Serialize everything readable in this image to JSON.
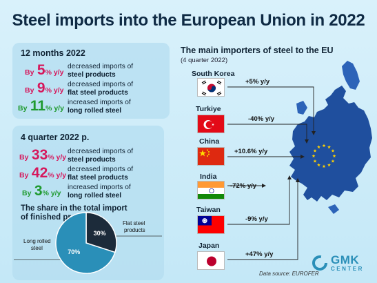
{
  "title": "Steel imports into the European Union in 2022",
  "annual": {
    "heading": "12 months 2022",
    "rows": [
      {
        "by": "By",
        "num": "5",
        "unit": "% y/y",
        "line1": "decreased imports of",
        "line2": "steel products",
        "kind": "decrease"
      },
      {
        "by": "By",
        "num": "9",
        "unit": "% y/y",
        "line1": "decreased imports of",
        "line2": "flat steel products",
        "kind": "decrease"
      },
      {
        "by": "By",
        "num": "11",
        "unit": "% y/y",
        "line1": "increased imports of",
        "line2": "long rolled steel",
        "kind": "increase"
      }
    ]
  },
  "quarter": {
    "heading": "4 quarter 2022 p.",
    "rows": [
      {
        "by": "By",
        "num": "33",
        "unit": "% y/y",
        "line1": "decreased imports of",
        "line2": "steel products",
        "kind": "decrease"
      },
      {
        "by": "By",
        "num": "42",
        "unit": "% y/y",
        "line1": "decreased imports of",
        "line2": "flat steel products",
        "kind": "decrease"
      },
      {
        "by": "By",
        "num": "3",
        "unit": "% y/y",
        "line1": "increased imports of",
        "line2": "long rolled steel",
        "kind": "increase"
      }
    ]
  },
  "chart_data": {
    "type": "pie",
    "title": "The share in the total import of finished products",
    "categories": [
      "Flat steel products",
      "Long rolled steel"
    ],
    "values": [
      30,
      70
    ],
    "labels": [
      "30%",
      "70%"
    ],
    "colors": [
      "#1c2b3a",
      "#2a8fb8"
    ]
  },
  "share": {
    "title_line1": "The share in the total import",
    "title_line2": "of finished products",
    "flat_label_line1": "Flat steel",
    "flat_label_line2": "products",
    "long_label_line1": "Long rolled",
    "long_label_line2": "steel"
  },
  "importers": {
    "title": "The main importers of steel to the EU",
    "subtitle": "(4 quarter 2022)",
    "countries": [
      {
        "name": "South Korea",
        "change": "+5% y/y",
        "flag": "south-korea-flag"
      },
      {
        "name": "Turkiye",
        "change": "-40% y/y",
        "flag": "turkiye-flag"
      },
      {
        "name": "China",
        "change": "+10.6% y/y",
        "flag": "china-flag"
      },
      {
        "name": "India",
        "change": "-72% y/y",
        "flag": "india-flag"
      },
      {
        "name": "Taiwan",
        "change": "-9% y/y",
        "flag": "taiwan-flag"
      },
      {
        "name": "Japan",
        "change": "+47% y/y",
        "flag": "japan-flag"
      }
    ]
  },
  "source": "Data source: EUROFER",
  "brand": {
    "line1": "GMK",
    "line2": "CENTER",
    "icon": "gmk-logo-icon"
  },
  "colors": {
    "decrease": "#d6185c",
    "increase": "#1f9a2f",
    "map": "#1f4f9e",
    "accent": "#2a8fb8"
  }
}
